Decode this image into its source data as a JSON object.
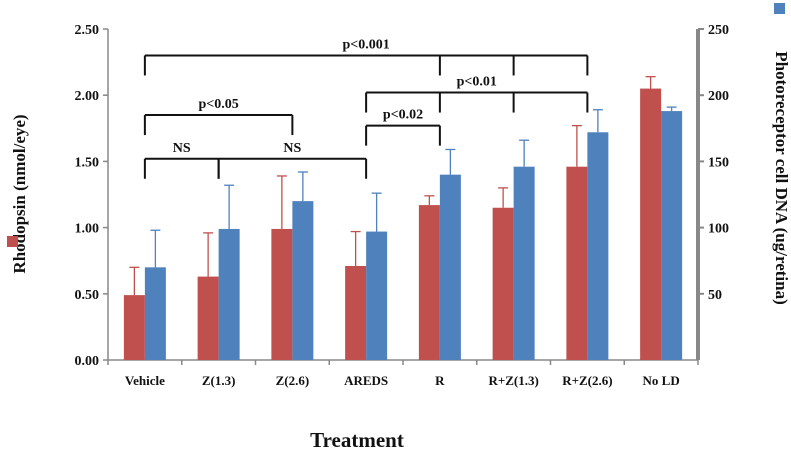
{
  "chart_data": {
    "type": "bar",
    "xlabel": "Treatment",
    "ylabel_left": "Rhodopsin (nmol/eye)",
    "ylabel_right": "Photoreceptor cell DNA (ug/retina)",
    "ylim_left": [
      0,
      2.5
    ],
    "ylim_right": [
      0,
      250
    ],
    "left_ticks": [
      "0.00",
      "0.50",
      "1.00",
      "1.50",
      "2.00",
      "2.50"
    ],
    "right_ticks": [
      "50",
      "100",
      "150",
      "200",
      "250"
    ],
    "categories": [
      "Vehicle",
      "Z(1.3)",
      "Z(2.6)",
      "AREDS",
      "R",
      "R+Z(1.3)",
      "R+Z(2.6)",
      "No LD"
    ],
    "series": [
      {
        "name": "Rhodopsin (nmol/eye)",
        "axis": "left",
        "color": "#c0504d",
        "values": [
          0.49,
          0.63,
          0.99,
          0.71,
          1.17,
          1.15,
          1.46,
          2.05
        ],
        "errors": [
          0.21,
          0.33,
          0.4,
          0.26,
          0.07,
          0.15,
          0.31,
          0.09
        ]
      },
      {
        "name": "Photoreceptor cell DNA (ug/retina)",
        "axis": "right",
        "color": "#4f81bd",
        "values": [
          70,
          99,
          120,
          97,
          140,
          146,
          172,
          188
        ],
        "errors": [
          28,
          33,
          22,
          29,
          19,
          20,
          17,
          3
        ]
      }
    ],
    "significance": [
      {
        "label": "p<0.001",
        "from": "Vehicle",
        "to": "R+Z(2.6)",
        "level": 2.3,
        "drops": [
          "Vehicle",
          "R",
          "R+Z(1.3)",
          "R+Z(2.6)"
        ]
      },
      {
        "label": "p<0.01",
        "from": "AREDS",
        "to": "R+Z(2.6)",
        "level": 2.02,
        "drops": [
          "AREDS",
          "R",
          "R+Z(1.3)",
          "R+Z(2.6)"
        ]
      },
      {
        "label": "p<0.05",
        "from": "Vehicle",
        "to": "Z(2.6)",
        "level": 1.85,
        "drops": [
          "Vehicle",
          "Z(2.6)"
        ]
      },
      {
        "label": "p<0.02",
        "from": "AREDS",
        "to": "R",
        "level": 1.77,
        "drops": [
          "AREDS",
          "R"
        ]
      },
      {
        "label": "NS",
        "from": "Vehicle",
        "to": "Z(1.3)",
        "level": 1.52,
        "drops": [
          "Vehicle",
          "Z(1.3)"
        ]
      },
      {
        "label": "NS",
        "from": "Z(1.3)",
        "to": "AREDS",
        "level": 1.52,
        "drops": [
          "Z(1.3)",
          "AREDS"
        ]
      }
    ]
  }
}
